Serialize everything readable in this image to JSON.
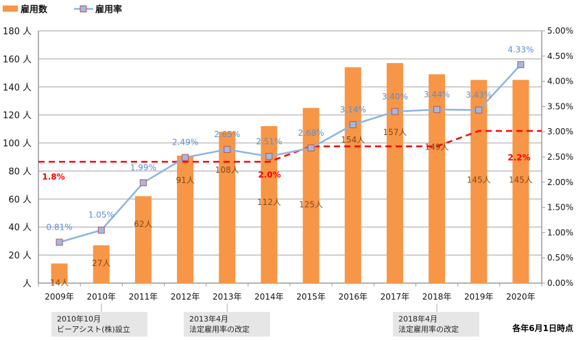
{
  "chart_data": {
    "type": "bar+line",
    "legend": [
      {
        "name": "雇用数",
        "color": "#f79646",
        "kind": "bar"
      },
      {
        "name": "雇用率",
        "color": "#8db3e2",
        "kind": "line"
      }
    ],
    "legend_position": "top-left",
    "categories": [
      "2009年",
      "2010年",
      "2011年",
      "2012年",
      "2013年",
      "2014年",
      "2015年",
      "2016年",
      "2017年",
      "2018年",
      "2019年",
      "2020年"
    ],
    "employees": [
      14,
      27,
      62,
      91,
      108,
      112,
      125,
      154,
      157,
      149,
      145,
      145
    ],
    "employee_labels": [
      "14人",
      "27人",
      "62人",
      "91人",
      "108人",
      "112人",
      "125人",
      "154人",
      "157人",
      "149人",
      "145人",
      "145人"
    ],
    "rate": [
      0.81,
      1.05,
      1.99,
      2.49,
      2.65,
      2.51,
      2.68,
      3.14,
      3.4,
      3.44,
      3.43,
      4.33
    ],
    "rate_labels": [
      "0.81%",
      "1.05%",
      "1.99%",
      "2.49%",
      "2.65%",
      "2.51%",
      "2.68%",
      "3.14%",
      "3.40%",
      "3.44%",
      "3.43%",
      "4.33%"
    ],
    "legal_rate": [
      1.8,
      1.8,
      1.8,
      1.8,
      1.8,
      1.8,
      2.0,
      2.0,
      2.0,
      2.0,
      2.2,
      2.2
    ],
    "legal_rate_labels": [
      {
        "text": "1.8%",
        "index": 0
      },
      {
        "text": "2.0%",
        "index": 5
      },
      {
        "text": "2.2%",
        "index": 11
      }
    ],
    "left_axis": {
      "ylim": [
        0,
        180
      ],
      "ticks": [
        "人",
        "20 人",
        "40 人",
        "60 人",
        "80 人",
        "100 人",
        "120 人",
        "140 人",
        "160 人",
        "180 人"
      ]
    },
    "right_axis": {
      "ylim": [
        0,
        5
      ],
      "ticks": [
        "0.00%",
        "0.50%",
        "1.00%",
        "1.50%",
        "2.00%",
        "2.50%",
        "3.00%",
        "3.50%",
        "4.00%",
        "4.50%",
        "5.00%"
      ]
    },
    "grid": true,
    "colors": {
      "bar": "#f79646",
      "line": "#8db3e2",
      "marker_border": "#c0504d",
      "legal": "#ff0000",
      "bar_label": "#7f4a1a",
      "rate_label": "#5b8fd1"
    }
  },
  "annotations": [
    {
      "index": 1,
      "line1": "2010年10月",
      "line2": "ビーアシスト(株)設立"
    },
    {
      "index": 4,
      "line1": "2013年4月",
      "line2": "法定雇用率の改定"
    },
    {
      "index": 9,
      "line1": "2018年4月",
      "line2": "法定雇用率の改定"
    }
  ],
  "footnote": "各年6月1日時点"
}
